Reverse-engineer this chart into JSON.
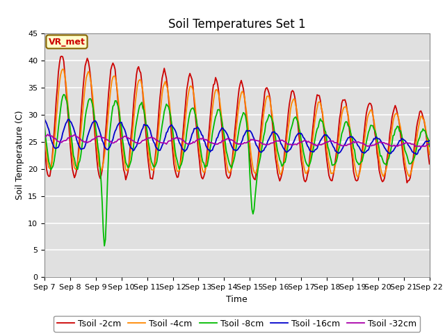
{
  "title": "Soil Temperatures Set 1",
  "xlabel": "Time",
  "ylabel": "Soil Temperature (C)",
  "annotation": "VR_met",
  "ylim": [
    0,
    45
  ],
  "yticks": [
    0,
    5,
    10,
    15,
    20,
    25,
    30,
    35,
    40,
    45
  ],
  "x_labels": [
    "Sep 7",
    "Sep 8",
    "Sep 9",
    "Sep 10",
    "Sep 11",
    "Sep 12",
    "Sep 13",
    "Sep 14",
    "Sep 15",
    "Sep 16",
    "Sep 17",
    "Sep 18",
    "Sep 19",
    "Sep 20",
    "Sep 21",
    "Sep 22"
  ],
  "series_labels": [
    "Tsoil -2cm",
    "Tsoil -4cm",
    "Tsoil -8cm",
    "Tsoil -16cm",
    "Tsoil -32cm"
  ],
  "series_colors": [
    "#cc0000",
    "#ff8800",
    "#00bb00",
    "#0000cc",
    "#aa00aa"
  ],
  "plot_bg_color": "#e0e0e0",
  "outer_bg_color": "#ffffff",
  "title_fontsize": 12,
  "label_fontsize": 9,
  "tick_fontsize": 8,
  "legend_fontsize": 9
}
